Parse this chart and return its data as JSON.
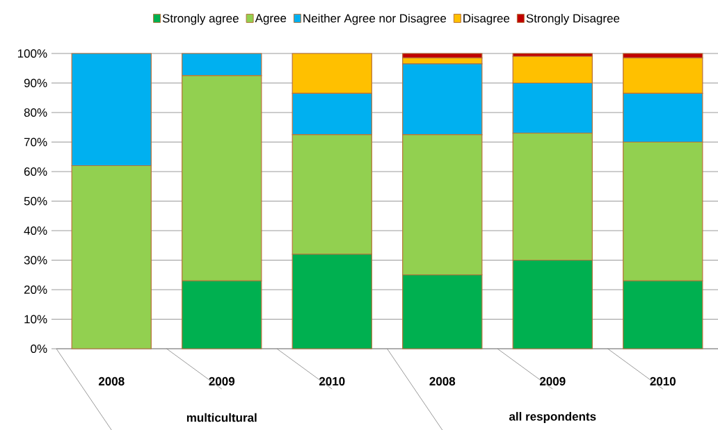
{
  "chart_data": {
    "type": "bar",
    "stacked": true,
    "categories": [
      "2008",
      "2009",
      "2010",
      "2008",
      "2009",
      "2010"
    ],
    "series": [
      {
        "name": "Strongly agree",
        "color": "#00b050",
        "values": [
          0,
          23,
          32,
          25,
          30,
          23
        ]
      },
      {
        "name": "Agree",
        "color": "#92d050",
        "values": [
          62,
          69.5,
          40.5,
          47.5,
          43,
          47
        ]
      },
      {
        "name": "Neither Agree nor Disagree",
        "color": "#00b0f0",
        "values": [
          38,
          7.5,
          14,
          24,
          17,
          16.5
        ]
      },
      {
        "name": "Disagree",
        "color": "#ffc000",
        "values": [
          0,
          0,
          13.5,
          2,
          9,
          12
        ]
      },
      {
        "name": "Strongly Disagree",
        "color": "#c00000",
        "values": [
          0,
          0,
          0,
          1.5,
          1,
          1.5
        ]
      }
    ],
    "ylim": [
      0,
      100
    ],
    "yticks": [
      {
        "value": 0,
        "label": "0%"
      },
      {
        "value": 10,
        "label": "10%"
      },
      {
        "value": 20,
        "label": "20%"
      },
      {
        "value": 30,
        "label": "30%"
      },
      {
        "value": 40,
        "label": "40%"
      },
      {
        "value": 50,
        "label": "50%"
      },
      {
        "value": 60,
        "label": "60%"
      },
      {
        "value": 70,
        "label": "70%"
      },
      {
        "value": 80,
        "label": "80%"
      },
      {
        "value": 90,
        "label": "90%"
      },
      {
        "value": 100,
        "label": "100%"
      }
    ],
    "grid": "y",
    "legend": "top",
    "annotations": [
      "multicultural",
      "all respondents"
    ]
  }
}
